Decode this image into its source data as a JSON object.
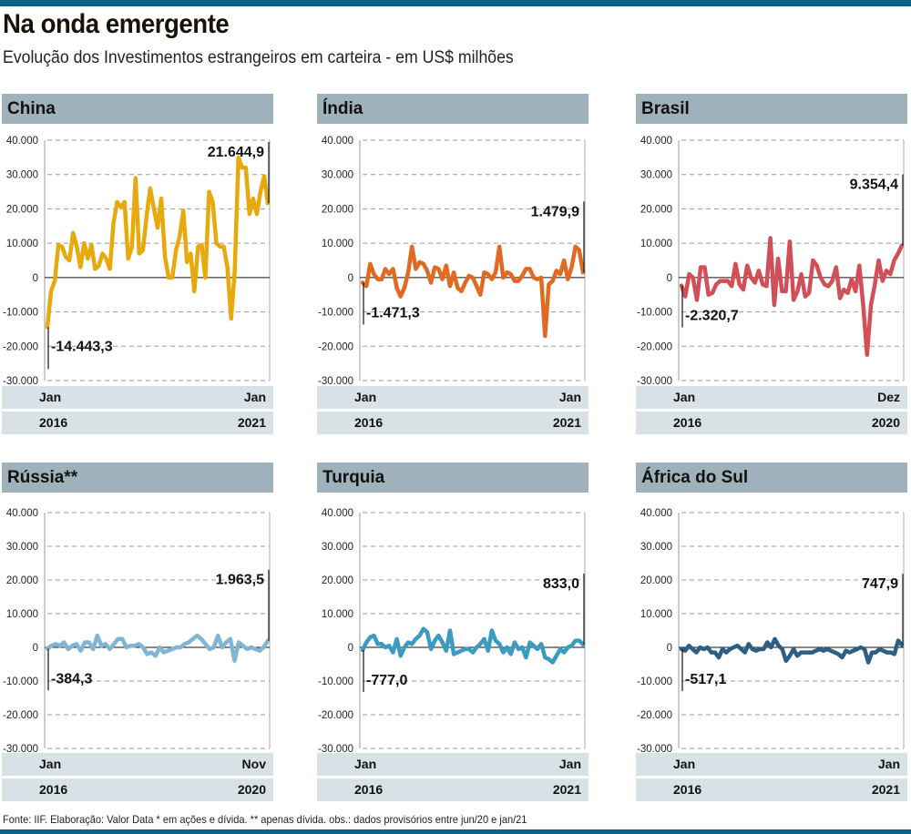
{
  "header": {
    "title": "Na onda emergente",
    "subtitle": "Evolução dos Investimentos estrangeiros em carteira - em US$ milhões"
  },
  "footer": {
    "source": "Fonte: IIF. Elaboração: Valor Data * em ações e dívida. ** apenas dívida. obs.: dados provisórios entre jun/20 e jan/21"
  },
  "colors": {
    "topbar": "#0d6287",
    "panel_title_bg": "#9fb2bb",
    "xaxis_bg": "#d8e1e6"
  },
  "chart_data": [
    {
      "type": "line",
      "title": "China",
      "color": "#e8a90c",
      "ylim": [
        -30000,
        40000
      ],
      "yticks": [
        40000,
        30000,
        20000,
        10000,
        0,
        -10000,
        -20000,
        -30000
      ],
      "ytick_labels": [
        "40.000",
        "30.000",
        "20.000",
        "10.000",
        "0",
        "-10.000",
        "-20.000",
        "-30.000"
      ],
      "grid": true,
      "x_start": {
        "month": "Jan",
        "year": "2016"
      },
      "x_end": {
        "month": "Jan",
        "year": "2021"
      },
      "first_label": "-14.443,3",
      "last_label": "21.644,9",
      "values": [
        -14443,
        -4000,
        -1000,
        9500,
        9000,
        6000,
        5000,
        13000,
        9000,
        3000,
        10000,
        5500,
        9500,
        2500,
        3500,
        7000,
        5500,
        2500,
        16000,
        22000,
        20500,
        22000,
        5500,
        9000,
        29000,
        7000,
        8000,
        18000,
        26000,
        20000,
        14500,
        23000,
        6000,
        0,
        0,
        8000,
        12000,
        19500,
        4500,
        7000,
        -4000,
        9000,
        9500,
        0,
        25000,
        22000,
        10000,
        9000,
        9000,
        3000,
        -12000,
        2000,
        35000,
        32000,
        32000,
        18500,
        23000,
        18500,
        25000,
        29500,
        21645
      ]
    },
    {
      "type": "line",
      "title": "Índia",
      "color": "#e06a22",
      "ylim": [
        -30000,
        40000
      ],
      "yticks": [
        40000,
        30000,
        20000,
        10000,
        0,
        -10000,
        -20000,
        -30000
      ],
      "ytick_labels": [
        "40.000",
        "30.000",
        "20.000",
        "10.000",
        "0",
        "-10.000",
        "-20.000",
        "-30.000"
      ],
      "grid": true,
      "x_start": {
        "month": "Jan",
        "year": "2016"
      },
      "x_end": {
        "month": "Jan",
        "year": "2021"
      },
      "first_label": "-1.471,3",
      "last_label": "1.479,9",
      "values": [
        -1471,
        -2500,
        4000,
        1000,
        -500,
        -500,
        2500,
        1000,
        2500,
        -3000,
        -5500,
        -3000,
        1500,
        9000,
        2500,
        4500,
        4000,
        2000,
        -1500,
        3000,
        2500,
        -500,
        3500,
        -2500,
        1500,
        -3000,
        -4000,
        -1500,
        500,
        0,
        -2500,
        -5000,
        1500,
        1000,
        -500,
        1500,
        9000,
        0,
        1500,
        1000,
        -1000,
        -1000,
        500,
        2500,
        2500,
        0,
        -500,
        0,
        -17000,
        -2000,
        -1000,
        2000,
        1000,
        5000,
        -500,
        3000,
        9000,
        8000,
        1480
      ]
    },
    {
      "type": "line",
      "title": "Brasil",
      "color": "#d24f58",
      "ylim": [
        -30000,
        40000
      ],
      "yticks": [
        40000,
        30000,
        20000,
        10000,
        0,
        -10000,
        -20000,
        -30000
      ],
      "ytick_labels": [
        "40.000",
        "30.000",
        "20.000",
        "10.000",
        "0",
        "-10.000",
        "-20.000",
        "-30.000"
      ],
      "grid": true,
      "x_start": {
        "month": "Jan",
        "year": "2016"
      },
      "x_end": {
        "month": "Dez",
        "year": "2020"
      },
      "first_label": "-2.320,7",
      "last_label": "9.354,4",
      "values": [
        -2321,
        -5500,
        1000,
        0,
        -6500,
        3000,
        3000,
        -5000,
        -4500,
        -2000,
        -1000,
        -1000,
        -1000,
        -2500,
        4000,
        -2000,
        -3500,
        3500,
        0,
        -1500,
        2000,
        -2000,
        -2500,
        11500,
        -8000,
        5500,
        -4000,
        -4000,
        10500,
        -6500,
        -4000,
        1000,
        -5500,
        -4500,
        5000,
        3500,
        0,
        -2000,
        -2500,
        -1000,
        3000,
        -6000,
        -3500,
        -4500,
        -500,
        -4000,
        3500,
        -8000,
        -22500,
        -8000,
        -2000,
        5000,
        -1000,
        2000,
        1000,
        5000,
        7000,
        9354
      ]
    },
    {
      "type": "line",
      "title": "Rússia**",
      "color": "#82b5d3",
      "ylim": [
        -30000,
        40000
      ],
      "yticks": [
        40000,
        30000,
        20000,
        10000,
        0,
        -10000,
        -20000,
        -30000
      ],
      "ytick_labels": [
        "40.000",
        "30.000",
        "20.000",
        "10.000",
        "0",
        "-10.000",
        "-20.000",
        "-30.000"
      ],
      "grid": true,
      "x_start": {
        "month": "Jan",
        "year": "2016"
      },
      "x_end": {
        "month": "Nov",
        "year": "2020"
      },
      "first_label": "-384,3",
      "last_label": "1.963,5",
      "values": [
        -384,
        500,
        1000,
        500,
        1500,
        -500,
        500,
        1000,
        -1000,
        1500,
        1500,
        -500,
        3500,
        500,
        1000,
        -500,
        1000,
        2500,
        2500,
        0,
        500,
        500,
        1000,
        0,
        -2000,
        -1500,
        -2500,
        0,
        -1500,
        -1000,
        -500,
        0,
        0,
        1000,
        1500,
        2500,
        3500,
        2500,
        1000,
        -500,
        0,
        3500,
        0,
        1500,
        2500,
        -4000,
        1500,
        500,
        -500,
        0,
        -500,
        -1000,
        0,
        1964
      ]
    },
    {
      "type": "line",
      "title": "Turquia",
      "color": "#3c9bc1",
      "ylim": [
        -30000,
        40000
      ],
      "yticks": [
        40000,
        30000,
        20000,
        10000,
        0,
        -10000,
        -20000,
        -30000
      ],
      "ytick_labels": [
        "40.000",
        "30.000",
        "20.000",
        "10.000",
        "0",
        "-10.000",
        "-20.000",
        "-30.000"
      ],
      "grid": true,
      "x_start": {
        "month": "Jan",
        "year": "2016"
      },
      "x_end": {
        "month": "Jan",
        "year": "2021"
      },
      "first_label": "-777,0",
      "last_label": "833,0",
      "values": [
        -777,
        1500,
        3000,
        3500,
        1000,
        1000,
        0,
        500,
        -1500,
        2500,
        -2500,
        0,
        1500,
        1000,
        2500,
        3500,
        5500,
        4500,
        -500,
        2000,
        3500,
        1500,
        -1000,
        5000,
        -2000,
        -1500,
        -1000,
        -500,
        -500,
        -1500,
        0,
        1000,
        2500,
        -1000,
        5000,
        2000,
        1000,
        -1500,
        0,
        -2000,
        1500,
        -500,
        0,
        -3000,
        1500,
        500,
        -500,
        1000,
        -3000,
        -3500,
        -4500,
        -2500,
        -500,
        -1500,
        0,
        500,
        2000,
        2000,
        833
      ]
    },
    {
      "type": "line",
      "title": "África do Sul",
      "color": "#2d5e86",
      "ylim": [
        -30000,
        40000
      ],
      "yticks": [
        40000,
        30000,
        20000,
        10000,
        0,
        -10000,
        -20000,
        -30000
      ],
      "ytick_labels": [
        "40.000",
        "30.000",
        "20.000",
        "10.000",
        "0",
        "-10.000",
        "-20.000",
        "-30.000"
      ],
      "grid": true,
      "x_start": {
        "month": "Jan",
        "year": "2016"
      },
      "x_end": {
        "month": "Jan",
        "year": "2021"
      },
      "first_label": "-517,1",
      "last_label": "747,9",
      "values": [
        -517,
        -1000,
        500,
        -500,
        -1500,
        0,
        -500,
        0,
        -1500,
        -1500,
        -3000,
        -500,
        -1500,
        -500,
        0,
        500,
        -500,
        -1500,
        1000,
        -500,
        -1000,
        -500,
        -500,
        1500,
        0,
        2500,
        500,
        -500,
        -4000,
        -2500,
        -500,
        -2500,
        -1500,
        -1500,
        -1500,
        -1500,
        -1000,
        -500,
        -1000,
        -500,
        -1000,
        -1500,
        -2000,
        -3000,
        -1000,
        -1500,
        -1000,
        -500,
        0,
        -500,
        -4500,
        -1500,
        -1500,
        -500,
        -1000,
        -1500,
        -1500,
        -2000,
        2000,
        748
      ]
    }
  ]
}
